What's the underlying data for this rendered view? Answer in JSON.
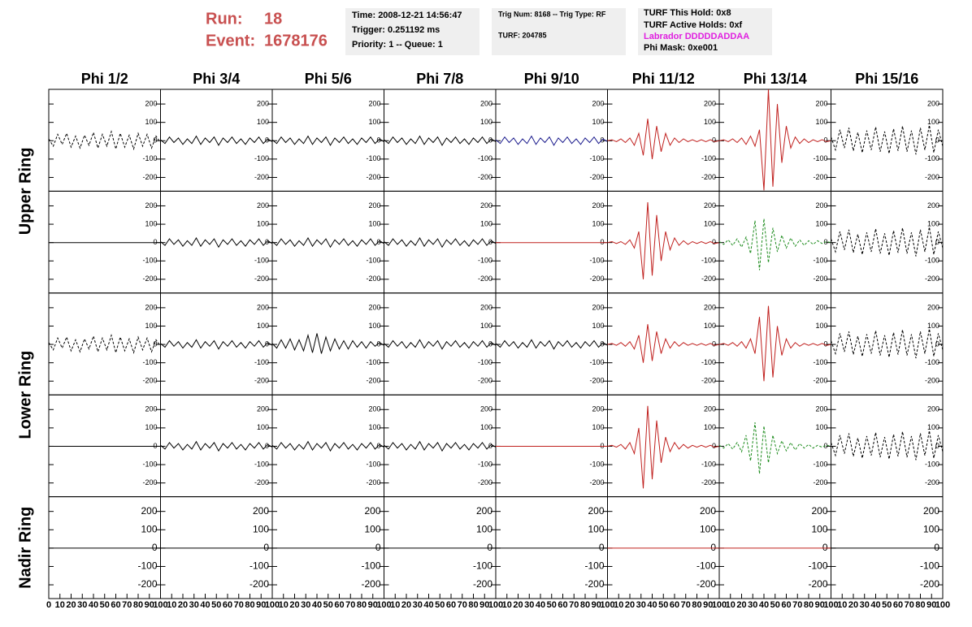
{
  "header": {
    "run_label": "Run:",
    "run": "18",
    "event_label": "Event:",
    "event": "1678176",
    "box1": [
      "Time: 2008-12-21 14:56:47",
      "Trigger: 0.251192 ms",
      "Priority: 1 -- Queue: 1"
    ],
    "box2": [
      "Trig Num: 8168 -- Trig Type: RF",
      "TURF: 204785"
    ],
    "box3": [
      "TURF This Hold: 0x8",
      "TURF Active Holds: 0xf",
      "Labrador DDDDDADDAA",
      "Phi Mask: 0xe001"
    ]
  },
  "chart_data": {
    "type": "line",
    "columns": [
      "Phi 1/2",
      "Phi 3/4",
      "Phi 5/6",
      "Phi 7/8",
      "Phi 9/10",
      "Phi 11/12",
      "Phi 13/14",
      "Phi 15/16"
    ],
    "row_labels": [
      "Upper Ring",
      "Lower Ring",
      "Nadir Ring"
    ],
    "x": [
      0,
      4,
      8,
      12,
      16,
      20,
      24,
      28,
      32,
      36,
      40,
      44,
      48,
      52,
      56,
      60,
      64,
      68,
      72,
      76,
      80,
      84,
      88,
      92,
      96,
      100
    ],
    "xlim": [
      0,
      100
    ],
    "xticks": [
      0,
      10,
      20,
      30,
      40,
      50,
      60,
      70,
      80,
      90,
      100
    ],
    "ylim": [
      -275,
      280
    ],
    "yticks": [
      200,
      100,
      0,
      -100,
      -200
    ],
    "panels": [
      {
        "color": "#000000",
        "style": "dashed",
        "values": [
          10,
          -30,
          35,
          -20,
          40,
          -35,
          25,
          -40,
          30,
          -25,
          45,
          -40,
          35,
          -30,
          50,
          -45,
          40,
          -35,
          30,
          -45,
          40,
          -30,
          35,
          -40,
          25,
          -10
        ]
      },
      {
        "color": "#000000",
        "style": "solid",
        "values": [
          5,
          -15,
          20,
          -10,
          15,
          -20,
          10,
          -15,
          25,
          -20,
          15,
          -10,
          20,
          -25,
          15,
          -10,
          20,
          -15,
          10,
          -20,
          15,
          -10,
          20,
          -15,
          10,
          -5
        ]
      },
      {
        "color": "#000000",
        "style": "solid",
        "values": [
          5,
          -15,
          20,
          -10,
          15,
          -20,
          10,
          -15,
          25,
          -20,
          15,
          -10,
          20,
          -25,
          15,
          -10,
          20,
          -15,
          10,
          -20,
          15,
          -10,
          20,
          -15,
          10,
          -5
        ]
      },
      {
        "color": "#000000",
        "style": "solid",
        "values": [
          5,
          -15,
          20,
          -10,
          15,
          -20,
          10,
          -15,
          25,
          -20,
          15,
          -10,
          20,
          -25,
          15,
          -10,
          20,
          -15,
          10,
          -20,
          15,
          -10,
          20,
          -15,
          10,
          -5
        ]
      },
      {
        "color": "#1a1a8c",
        "style": "solid",
        "values": [
          5,
          -15,
          20,
          -10,
          15,
          -20,
          10,
          -15,
          25,
          -20,
          15,
          -10,
          20,
          -25,
          15,
          -10,
          20,
          -15,
          10,
          -20,
          15,
          -10,
          20,
          -15,
          10,
          -5
        ]
      },
      {
        "color": "#c0201e",
        "style": "solid",
        "values": [
          0,
          5,
          -5,
          10,
          -10,
          15,
          -25,
          40,
          -80,
          120,
          -100,
          80,
          -60,
          40,
          -25,
          15,
          -10,
          10,
          -5,
          5,
          -5,
          5,
          -5,
          5,
          -5,
          0
        ]
      },
      {
        "color": "#c0201e",
        "style": "solid",
        "values": [
          0,
          5,
          -5,
          10,
          -10,
          15,
          -20,
          25,
          -30,
          60,
          -270,
          280,
          -250,
          200,
          -120,
          80,
          -40,
          20,
          -15,
          10,
          -10,
          5,
          -5,
          5,
          -5,
          0
        ]
      },
      {
        "color": "#000000",
        "style": "dashed",
        "values": [
          20,
          -50,
          60,
          -40,
          70,
          -55,
          45,
          -65,
          55,
          -50,
          75,
          -60,
          50,
          -70,
          65,
          -55,
          80,
          -60,
          55,
          -75,
          70,
          -50,
          85,
          -65,
          60,
          -30
        ]
      },
      {
        "color": "#000000",
        "style": "solid",
        "values": [
          0,
          0,
          0,
          0,
          0,
          0,
          0,
          0,
          0,
          0,
          0,
          0,
          0,
          0,
          0,
          0,
          0,
          0,
          0,
          0,
          0,
          0,
          0,
          0,
          0,
          0
        ]
      },
      {
        "color": "#000000",
        "style": "solid",
        "values": [
          5,
          -15,
          20,
          -10,
          15,
          -20,
          10,
          -15,
          25,
          -20,
          15,
          -10,
          20,
          -25,
          15,
          -10,
          20,
          -15,
          10,
          -20,
          15,
          -10,
          20,
          -15,
          10,
          -5
        ]
      },
      {
        "color": "#000000",
        "style": "solid",
        "values": [
          5,
          -15,
          20,
          -10,
          15,
          -20,
          10,
          -15,
          25,
          -20,
          15,
          -10,
          20,
          -25,
          15,
          -10,
          20,
          -15,
          10,
          -20,
          15,
          -10,
          20,
          -15,
          10,
          -5
        ]
      },
      {
        "color": "#000000",
        "style": "solid",
        "values": [
          5,
          -15,
          20,
          -10,
          15,
          -20,
          10,
          -15,
          25,
          -20,
          15,
          -10,
          20,
          -25,
          15,
          -10,
          20,
          -15,
          10,
          -20,
          15,
          -10,
          20,
          -15,
          10,
          -5
        ]
      },
      {
        "color": "#c0201e",
        "style": "solid",
        "values": [
          0,
          0,
          0,
          0,
          0,
          0,
          0,
          0,
          0,
          0,
          0,
          0,
          0,
          0,
          0,
          0,
          0,
          0,
          0,
          0,
          0,
          0,
          0,
          0,
          0,
          0
        ]
      },
      {
        "color": "#c0201e",
        "style": "solid",
        "values": [
          0,
          5,
          -5,
          5,
          -10,
          15,
          -30,
          60,
          -200,
          220,
          -180,
          150,
          -100,
          60,
          -40,
          25,
          -15,
          10,
          -10,
          5,
          -5,
          5,
          -5,
          5,
          -5,
          0
        ]
      },
      {
        "color": "#1e8c1e",
        "style": "dashed",
        "values": [
          5,
          -10,
          15,
          -15,
          20,
          -25,
          30,
          -60,
          120,
          -150,
          130,
          -110,
          80,
          -50,
          40,
          -30,
          25,
          -20,
          15,
          -15,
          10,
          -10,
          10,
          -5,
          5,
          0
        ]
      },
      {
        "color": "#000000",
        "style": "dashed",
        "values": [
          20,
          -50,
          60,
          -40,
          70,
          -55,
          45,
          -65,
          55,
          -50,
          75,
          -60,
          50,
          -70,
          65,
          -55,
          80,
          -60,
          55,
          -75,
          70,
          -50,
          85,
          -65,
          60,
          -30
        ]
      },
      {
        "color": "#000000",
        "style": "dashed",
        "values": [
          10,
          -30,
          35,
          -20,
          40,
          -35,
          25,
          -40,
          30,
          -25,
          45,
          -40,
          35,
          -30,
          50,
          -45,
          40,
          -35,
          30,
          -45,
          40,
          -30,
          35,
          -40,
          25,
          -10
        ]
      },
      {
        "color": "#000000",
        "style": "solid",
        "values": [
          5,
          -15,
          20,
          -10,
          15,
          -20,
          10,
          -15,
          25,
          -20,
          15,
          -10,
          20,
          -25,
          15,
          -10,
          20,
          -15,
          10,
          -20,
          15,
          -10,
          20,
          -15,
          10,
          -5
        ]
      },
      {
        "color": "#000000",
        "style": "solid",
        "values": [
          5,
          -20,
          25,
          -20,
          30,
          -30,
          25,
          -35,
          50,
          -45,
          60,
          -50,
          40,
          -35,
          30,
          -25,
          20,
          -25,
          20,
          -15,
          15,
          -20,
          15,
          -10,
          10,
          -5
        ]
      },
      {
        "color": "#000000",
        "style": "solid",
        "values": [
          5,
          -15,
          20,
          -10,
          15,
          -20,
          10,
          -15,
          25,
          -20,
          15,
          -10,
          20,
          -25,
          15,
          -10,
          20,
          -15,
          10,
          -20,
          15,
          -10,
          20,
          -15,
          10,
          -5
        ]
      },
      {
        "color": "#000000",
        "style": "solid",
        "values": [
          5,
          -15,
          20,
          -10,
          15,
          -20,
          10,
          -15,
          25,
          -20,
          15,
          -10,
          20,
          -25,
          15,
          -10,
          20,
          -15,
          10,
          -20,
          15,
          -10,
          20,
          -15,
          10,
          -5
        ]
      },
      {
        "color": "#c0201e",
        "style": "solid",
        "values": [
          0,
          5,
          -5,
          10,
          -10,
          15,
          -25,
          50,
          -100,
          110,
          -90,
          70,
          -50,
          30,
          -20,
          15,
          -10,
          10,
          -5,
          5,
          -5,
          5,
          -5,
          5,
          -5,
          0
        ]
      },
      {
        "color": "#c0201e",
        "style": "solid",
        "values": [
          0,
          5,
          -5,
          10,
          -10,
          15,
          -20,
          30,
          -50,
          150,
          -200,
          210,
          -180,
          100,
          -60,
          30,
          -20,
          10,
          -10,
          5,
          -5,
          5,
          -5,
          5,
          -5,
          0
        ]
      },
      {
        "color": "#000000",
        "style": "dashed",
        "values": [
          20,
          -50,
          60,
          -40,
          70,
          -55,
          45,
          -65,
          55,
          -50,
          75,
          -60,
          50,
          -70,
          65,
          -55,
          80,
          -60,
          55,
          -75,
          70,
          -50,
          85,
          -65,
          60,
          -30
        ]
      },
      {
        "color": "#000000",
        "style": "solid",
        "values": [
          0,
          0,
          0,
          0,
          0,
          0,
          0,
          0,
          0,
          0,
          0,
          0,
          0,
          0,
          0,
          0,
          0,
          0,
          0,
          0,
          0,
          0,
          0,
          0,
          0,
          0
        ]
      },
      {
        "color": "#000000",
        "style": "solid",
        "values": [
          5,
          -15,
          20,
          -10,
          15,
          -20,
          10,
          -15,
          25,
          -20,
          15,
          -10,
          20,
          -25,
          15,
          -10,
          20,
          -15,
          10,
          -20,
          15,
          -10,
          20,
          -15,
          10,
          -5
        ]
      },
      {
        "color": "#000000",
        "style": "solid",
        "values": [
          5,
          -15,
          20,
          -10,
          15,
          -20,
          10,
          -15,
          25,
          -20,
          15,
          -10,
          20,
          -25,
          15,
          -10,
          20,
          -15,
          10,
          -20,
          15,
          -10,
          20,
          -15,
          10,
          -5
        ]
      },
      {
        "color": "#000000",
        "style": "solid",
        "values": [
          5,
          -15,
          20,
          -10,
          15,
          -20,
          10,
          -15,
          25,
          -20,
          15,
          -10,
          20,
          -25,
          15,
          -10,
          20,
          -15,
          10,
          -20,
          15,
          -10,
          20,
          -15,
          10,
          -5
        ]
      },
      {
        "color": "#c0201e",
        "style": "solid",
        "values": [
          0,
          0,
          0,
          0,
          0,
          0,
          0,
          0,
          0,
          0,
          0,
          0,
          0,
          0,
          0,
          0,
          0,
          0,
          0,
          0,
          0,
          0,
          0,
          0,
          0,
          0
        ]
      },
      {
        "color": "#c0201e",
        "style": "solid",
        "values": [
          0,
          5,
          -5,
          10,
          -15,
          20,
          -40,
          100,
          -230,
          220,
          -180,
          140,
          -90,
          50,
          -30,
          20,
          -15,
          10,
          -10,
          5,
          -5,
          5,
          -5,
          5,
          -5,
          0
        ]
      },
      {
        "color": "#1e8c1e",
        "style": "dashed",
        "values": [
          5,
          -10,
          15,
          -15,
          20,
          -30,
          60,
          -80,
          130,
          -150,
          110,
          -90,
          60,
          -40,
          30,
          -25,
          20,
          -20,
          15,
          -10,
          10,
          -10,
          5,
          -5,
          5,
          0
        ]
      },
      {
        "color": "#000000",
        "style": "dashed",
        "values": [
          20,
          -50,
          60,
          -40,
          70,
          -55,
          45,
          -65,
          55,
          -50,
          75,
          -60,
          50,
          -70,
          65,
          -55,
          80,
          -60,
          55,
          -75,
          70,
          -50,
          85,
          -65,
          60,
          -30
        ]
      },
      {
        "color": "#000000",
        "style": "solid",
        "values": [
          0,
          0,
          0,
          0,
          0,
          0,
          0,
          0,
          0,
          0,
          0,
          0,
          0,
          0,
          0,
          0,
          0,
          0,
          0,
          0,
          0,
          0,
          0,
          0,
          0,
          0
        ]
      },
      {
        "color": "#000000",
        "style": "solid",
        "values": [
          0,
          0,
          0,
          0,
          0,
          0,
          0,
          0,
          0,
          0,
          0,
          0,
          0,
          0,
          0,
          0,
          0,
          0,
          0,
          0,
          0,
          0,
          0,
          0,
          0,
          0
        ]
      },
      {
        "color": "#000000",
        "style": "solid",
        "values": [
          0,
          0,
          0,
          0,
          0,
          0,
          0,
          0,
          0,
          0,
          0,
          0,
          0,
          0,
          0,
          0,
          0,
          0,
          0,
          0,
          0,
          0,
          0,
          0,
          0,
          0
        ]
      },
      {
        "color": "#000000",
        "style": "solid",
        "values": [
          0,
          0,
          0,
          0,
          0,
          0,
          0,
          0,
          0,
          0,
          0,
          0,
          0,
          0,
          0,
          0,
          0,
          0,
          0,
          0,
          0,
          0,
          0,
          0,
          0,
          0
        ]
      },
      {
        "color": "#000000",
        "style": "solid",
        "values": [
          0,
          0,
          0,
          0,
          0,
          0,
          0,
          0,
          0,
          0,
          0,
          0,
          0,
          0,
          0,
          0,
          0,
          0,
          0,
          0,
          0,
          0,
          0,
          0,
          0,
          0
        ]
      },
      {
        "color": "#c0201e",
        "style": "solid",
        "values": [
          0,
          0,
          0,
          0,
          0,
          0,
          0,
          0,
          0,
          0,
          0,
          0,
          0,
          0,
          0,
          0,
          0,
          0,
          0,
          0,
          0,
          0,
          0,
          0,
          0,
          0
        ]
      },
      {
        "color": "#c0201e",
        "style": "solid",
        "values": [
          0,
          0,
          0,
          0,
          0,
          0,
          0,
          0,
          0,
          0,
          0,
          0,
          0,
          0,
          0,
          0,
          0,
          0,
          0,
          0,
          0,
          0,
          0,
          0,
          0,
          0
        ]
      },
      {
        "color": "#000000",
        "style": "solid",
        "values": [
          0,
          0,
          0,
          0,
          0,
          0,
          0,
          0,
          0,
          0,
          0,
          0,
          0,
          0,
          0,
          0,
          0,
          0,
          0,
          0,
          0,
          0,
          0,
          0,
          0,
          0
        ]
      }
    ]
  }
}
